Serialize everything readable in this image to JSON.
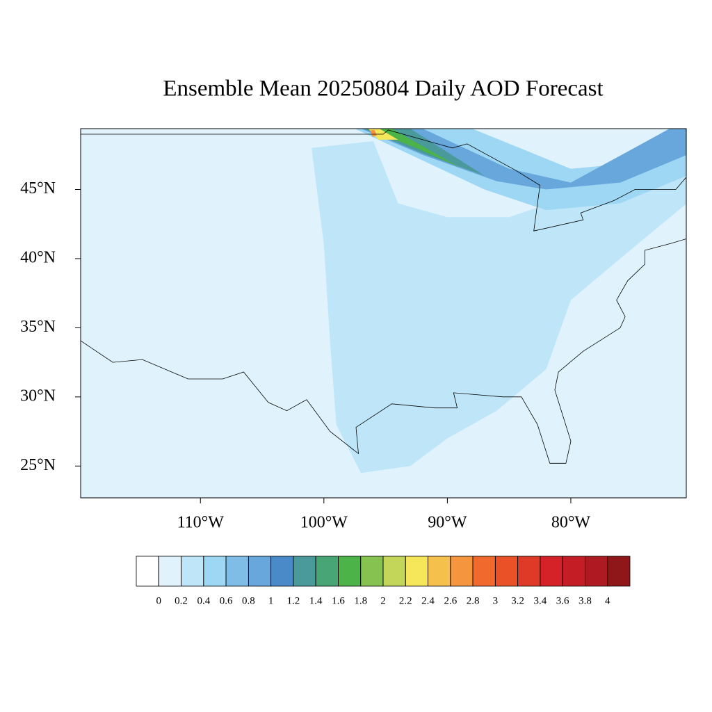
{
  "chart_data": {
    "type": "map",
    "title": "Ensemble Mean 20250804 Daily AOD Forecast",
    "xlim": [
      -119.7,
      -70.65
    ],
    "ylim": [
      22.7,
      49.4
    ],
    "xticks": [
      {
        "value": -110,
        "label": "110°W"
      },
      {
        "value": -100,
        "label": "100°W"
      },
      {
        "value": -90,
        "label": "90°W"
      },
      {
        "value": -80,
        "label": "80°W"
      }
    ],
    "yticks": [
      {
        "value": 25,
        "label": "25°N"
      },
      {
        "value": 30,
        "label": "30°N"
      },
      {
        "value": 35,
        "label": "35°N"
      },
      {
        "value": 40,
        "label": "40°N"
      },
      {
        "value": 45,
        "label": "45°N"
      }
    ],
    "colorbar": {
      "levels": [
        0,
        0.2,
        0.4,
        0.6,
        0.8,
        1,
        1.2,
        1.4,
        1.6,
        1.8,
        2,
        2.2,
        2.4,
        2.6,
        2.8,
        3,
        3.2,
        3.4,
        3.6,
        3.8,
        4
      ],
      "colors": [
        "#ffffff",
        "#e0f3fc",
        "#bfe6f8",
        "#9dd7f3",
        "#7fbde6",
        "#67a7dc",
        "#4a8ac8",
        "#4a9a9c",
        "#48a676",
        "#4bb347",
        "#86c24f",
        "#c4d65a",
        "#f6e65a",
        "#f6c04d",
        "#f5963f",
        "#f1692d",
        "#ea5127",
        "#de3a27",
        "#d52128",
        "#c41d26",
        "#ad1a22",
        "#8f1619"
      ]
    }
  }
}
